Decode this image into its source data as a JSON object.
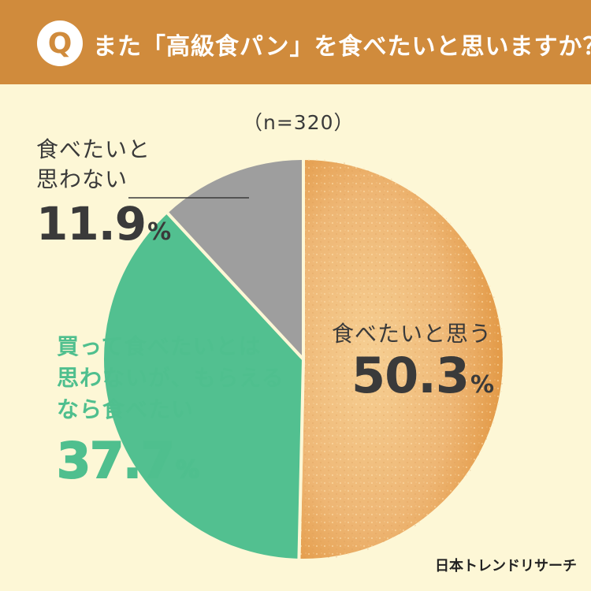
{
  "header": {
    "q_badge": "Q",
    "question": "また「高級食パン」を食べたいと思いますか？",
    "bg_color": "#d08b3c"
  },
  "sample_size": "（n=320）",
  "chart_data": {
    "type": "pie",
    "start_angle_deg": 0,
    "direction": "clockwise",
    "slices": [
      {
        "label": "食べたいと思う",
        "value": 50.3,
        "unit": "%",
        "color": "#eab26a"
      },
      {
        "label": "買って食べたいとは思わないが、もらえるなら食べたい",
        "value": 37.7,
        "unit": "%",
        "color": "#52c090"
      },
      {
        "label": "食べたいと思わない",
        "value": 11.9,
        "unit": "%",
        "color": "#9e9e9e"
      }
    ]
  },
  "labels": {
    "bread_line1": "食べたいと思う",
    "bread_pct": "50.3",
    "green_line1": "買って食べたいとは",
    "green_line2": "思わないが、もらえる",
    "green_line3": "なら食べたい",
    "green_pct": "37.7",
    "grey_line1": "食べたいと",
    "grey_line2": "思わない",
    "grey_pct": "11.9",
    "unit": "%"
  },
  "brand": "日本トレンドリサーチ"
}
